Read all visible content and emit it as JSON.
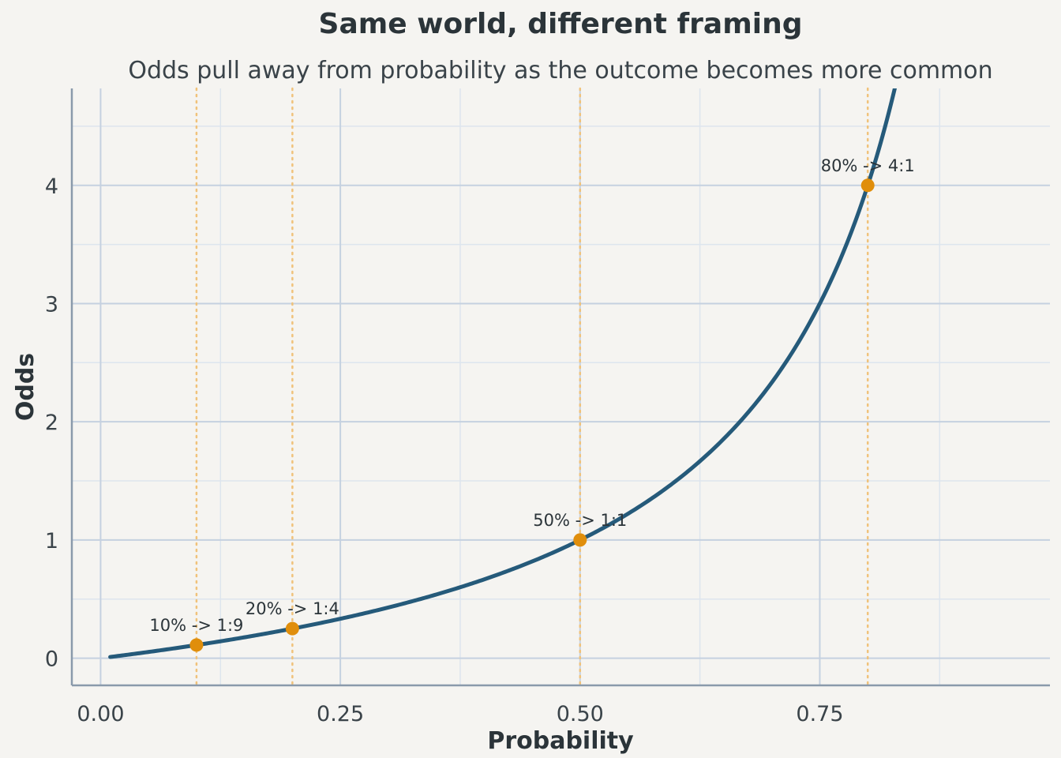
{
  "chart_data": {
    "type": "line",
    "title": "Same world, different framing",
    "subtitle": "Odds pull away from probability as the outcome becomes more common",
    "xlabel": "Probability",
    "ylabel": "Odds",
    "xlim": [
      -0.03,
      0.99
    ],
    "ylim": [
      -0.23,
      4.82
    ],
    "x_ticks": [
      0.0,
      0.25,
      0.5,
      0.75
    ],
    "x_tick_labels": [
      "0.00",
      "0.25",
      "0.50",
      "0.75"
    ],
    "y_ticks": [
      0,
      1,
      2,
      3,
      4
    ],
    "y_tick_labels": [
      "0",
      "1",
      "2",
      "3",
      "4"
    ],
    "grid": true,
    "series": [
      {
        "name": "",
        "function": "p / (1 - p)",
        "x_range": [
          0.01,
          0.83
        ],
        "x": [
          0.01,
          0.05,
          0.1,
          0.15,
          0.2,
          0.25,
          0.3,
          0.35,
          0.4,
          0.45,
          0.5,
          0.55,
          0.6,
          0.65,
          0.7,
          0.75,
          0.8,
          0.83
        ],
        "y": [
          0.0101,
          0.0526,
          0.1111,
          0.1765,
          0.25,
          0.3333,
          0.4286,
          0.5385,
          0.6667,
          0.8182,
          1.0,
          1.2222,
          1.5,
          1.8571,
          2.3333,
          3.0,
          4.0,
          4.8824
        ]
      }
    ],
    "highlights": [
      {
        "x": 0.1,
        "y": 0.1111,
        "label": "10% -> 1:9"
      },
      {
        "x": 0.2,
        "y": 0.25,
        "label": "20% -> 1:4"
      },
      {
        "x": 0.5,
        "y": 1.0,
        "label": "50% -> 1:1"
      },
      {
        "x": 0.8,
        "y": 4.0,
        "label": "80% -> 4:1"
      }
    ],
    "colors": {
      "background": "#f5f4f1",
      "line": "#255a7a",
      "points": "#e08e0b",
      "reference_lines": "#f0c27a",
      "grid_major": "#c5d1e0",
      "grid_minor": "#dde5ee",
      "axis": "#8a9aab"
    }
  }
}
